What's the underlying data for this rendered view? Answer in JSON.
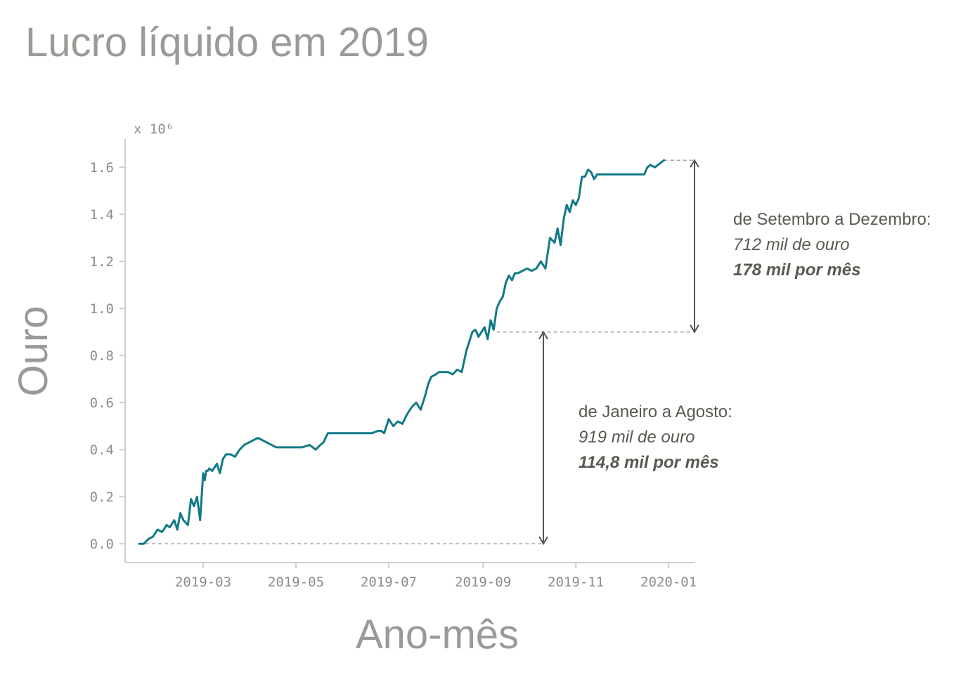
{
  "title": "Lucro líquido em 2019",
  "chart_data": {
    "type": "line",
    "title": "Lucro líquido em 2019",
    "xlabel": "Ano-mês",
    "ylabel": "Ouro",
    "y_multiplier_label": "x 10⁶",
    "xlim": [
      "2019-01-01",
      "2020-01-15"
    ],
    "ylim": [
      -0.08,
      1.72
    ],
    "x_ticks": [
      "2019-03",
      "2019-05",
      "2019-07",
      "2019-09",
      "2019-11",
      "2020-01"
    ],
    "y_ticks": [
      "0.0",
      "0.2",
      "0.4",
      "0.6",
      "0.8",
      "1.0",
      "1.2",
      "1.4",
      "1.6"
    ],
    "grid": false,
    "line_color": "#127a86",
    "series": [
      {
        "x": [
          "2019-01-18",
          "2019-01-21",
          "2019-01-24",
          "2019-01-27",
          "2019-01-30",
          "2019-02-02",
          "2019-02-05",
          "2019-02-07",
          "2019-02-10",
          "2019-02-12",
          "2019-02-14",
          "2019-02-16",
          "2019-02-19",
          "2019-02-21",
          "2019-02-23",
          "2019-02-25",
          "2019-02-27",
          "2019-03-01",
          "2019-03-02",
          "2019-03-03",
          "2019-03-04",
          "2019-03-05",
          "2019-03-07",
          "2019-03-10",
          "2019-03-12",
          "2019-03-14",
          "2019-03-16",
          "2019-03-19",
          "2019-03-22",
          "2019-03-25",
          "2019-03-28",
          "2019-03-31",
          "2019-04-03",
          "2019-04-06",
          "2019-04-09",
          "2019-04-12",
          "2019-04-15",
          "2019-04-18",
          "2019-04-22",
          "2019-04-26",
          "2019-04-30",
          "2019-05-05",
          "2019-05-10",
          "2019-05-14",
          "2019-05-17",
          "2019-05-19",
          "2019-05-22",
          "2019-05-25",
          "2019-05-26",
          "2019-06-05",
          "2019-06-15",
          "2019-06-20",
          "2019-06-24",
          "2019-06-26",
          "2019-06-28",
          "2019-07-01",
          "2019-07-04",
          "2019-07-07",
          "2019-07-10",
          "2019-07-13",
          "2019-07-16",
          "2019-07-19",
          "2019-07-22",
          "2019-07-25",
          "2019-07-27",
          "2019-07-29",
          "2019-08-01",
          "2019-08-03",
          "2019-08-06",
          "2019-08-09",
          "2019-08-12",
          "2019-08-15",
          "2019-08-18",
          "2019-08-21",
          "2019-08-23",
          "2019-08-25",
          "2019-08-27",
          "2019-08-29",
          "2019-08-31",
          "2019-09-02",
          "2019-09-04",
          "2019-09-06",
          "2019-09-08",
          "2019-09-10",
          "2019-09-12",
          "2019-09-14",
          "2019-09-16",
          "2019-09-18",
          "2019-09-20",
          "2019-09-22",
          "2019-09-24",
          "2019-09-27",
          "2019-09-30",
          "2019-10-03",
          "2019-10-06",
          "2019-10-09",
          "2019-10-12",
          "2019-10-15",
          "2019-10-18",
          "2019-10-20",
          "2019-10-22",
          "2019-10-24",
          "2019-10-26",
          "2019-10-28",
          "2019-10-30",
          "2019-11-01",
          "2019-11-03",
          "2019-11-05",
          "2019-11-07",
          "2019-11-09",
          "2019-11-11",
          "2019-11-13",
          "2019-11-15",
          "2019-11-17",
          "2019-11-19",
          "2019-11-25",
          "2019-12-05",
          "2019-12-16",
          "2019-12-18",
          "2019-12-20",
          "2019-12-23",
          "2019-12-25",
          "2019-12-27",
          "2019-12-29"
        ],
        "values": [
          0.0,
          0.0,
          0.02,
          0.03,
          0.06,
          0.05,
          0.08,
          0.07,
          0.1,
          0.06,
          0.13,
          0.1,
          0.08,
          0.19,
          0.16,
          0.2,
          0.1,
          0.3,
          0.27,
          0.31,
          0.31,
          0.32,
          0.31,
          0.34,
          0.3,
          0.36,
          0.38,
          0.38,
          0.37,
          0.4,
          0.42,
          0.43,
          0.44,
          0.45,
          0.44,
          0.43,
          0.42,
          0.41,
          0.41,
          0.41,
          0.41,
          0.41,
          0.42,
          0.4,
          0.42,
          0.43,
          0.47,
          0.47,
          0.47,
          0.47,
          0.47,
          0.47,
          0.48,
          0.48,
          0.47,
          0.53,
          0.5,
          0.52,
          0.51,
          0.55,
          0.58,
          0.6,
          0.57,
          0.63,
          0.68,
          0.71,
          0.72,
          0.73,
          0.73,
          0.73,
          0.72,
          0.74,
          0.73,
          0.82,
          0.86,
          0.9,
          0.91,
          0.88,
          0.9,
          0.92,
          0.87,
          0.95,
          0.91,
          1.0,
          1.03,
          1.05,
          1.11,
          1.14,
          1.12,
          1.15,
          1.15,
          1.16,
          1.17,
          1.16,
          1.17,
          1.2,
          1.17,
          1.3,
          1.28,
          1.34,
          1.27,
          1.38,
          1.44,
          1.41,
          1.46,
          1.44,
          1.47,
          1.56,
          1.56,
          1.59,
          1.58,
          1.55,
          1.57,
          1.57,
          1.57,
          1.57,
          1.57,
          1.57,
          1.6,
          1.61,
          1.6,
          1.61,
          1.62,
          1.63
        ]
      }
    ],
    "reference_levels": [
      0.0,
      0.9,
      1.63
    ],
    "annotations": [
      {
        "line1": "de Setembro a Dezembro:",
        "line2": "712 mil de ouro",
        "line3": "178 mil por mês"
      },
      {
        "line1": "de Janeiro a Agosto:",
        "line2": "919 mil de ouro",
        "line3": "114,8 mil por mês"
      }
    ]
  }
}
